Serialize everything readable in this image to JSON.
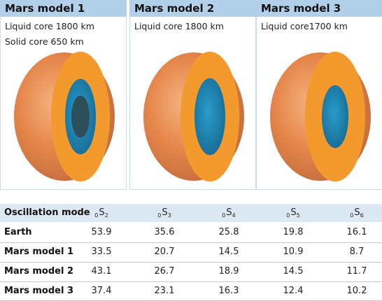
{
  "models": [
    {
      "title": "Mars model 1",
      "lines": [
        "Liquid core 1800 km",
        "Solid core  650 km"
      ],
      "core_layers": [
        "liquid-core",
        "solid-core"
      ]
    },
    {
      "title": "Mars model 2",
      "lines": [
        "Liquid core 1800 km"
      ],
      "core_layers": [
        "liquid-core"
      ]
    },
    {
      "title": "Mars model 3",
      "lines": [
        "Liquid core1700 km"
      ],
      "core_layers": [
        "liquid-core"
      ]
    }
  ],
  "table": {
    "header_label": "Oscillation mode",
    "modes": [
      {
        "prefix": "0",
        "letter": "S",
        "sub": "2"
      },
      {
        "prefix": "0",
        "letter": "S",
        "sub": "3"
      },
      {
        "prefix": "0",
        "letter": "S",
        "sub": "4"
      },
      {
        "prefix": "0",
        "letter": "S",
        "sub": "5"
      },
      {
        "prefix": "0",
        "letter": "S",
        "sub": "6"
      }
    ],
    "rows": [
      {
        "label": "Earth",
        "values": [
          "53.9",
          "35.6",
          "25.8",
          "19.8",
          "16.1"
        ]
      },
      {
        "label": "Mars model 1",
        "values": [
          "33.5",
          "20.7",
          "14.5",
          "10.9",
          "8.7"
        ]
      },
      {
        "label": "Mars model 2",
        "values": [
          "43.1",
          "26.7",
          "18.9",
          "14.5",
          "11.7"
        ]
      },
      {
        "label": "Mars model 3",
        "values": [
          "37.4",
          "23.1",
          "16.3",
          "12.4",
          "10.2"
        ]
      }
    ]
  },
  "colors": {
    "mantle": "#f39a2f",
    "crust_shadow": "#d9661f",
    "liquid_core": "#1f86b2",
    "solid_core": "#2d4f5a",
    "header_bg": "#b3d0ea",
    "table_head_bg": "#dce9f5"
  }
}
